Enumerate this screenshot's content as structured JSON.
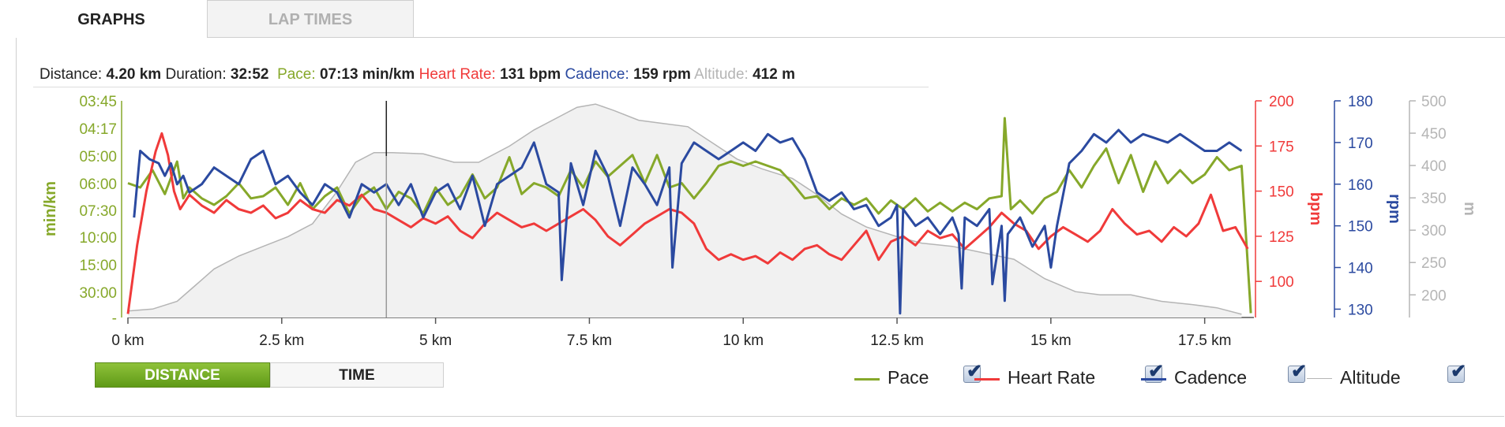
{
  "tabs": {
    "graphs": "GRAPHS",
    "lap_times": "LAP TIMES"
  },
  "stats": {
    "distance_label": "Distance:",
    "distance_value": "4.20 km",
    "duration_label": "Duration:",
    "duration_value": "32:52",
    "pace_label": "Pace:",
    "pace_value": "07:13 min/km",
    "hr_label": "Heart Rate:",
    "hr_value": "131 bpm",
    "cadence_label": "Cadence:",
    "cadence_value": "159 rpm",
    "altitude_label": "Altitude:",
    "altitude_value": "412 m"
  },
  "toggle": {
    "distance": "DISTANCE",
    "time": "TIME"
  },
  "legend": [
    {
      "key": "pace",
      "label": "Pace",
      "color": "#86a82a"
    },
    {
      "key": "hr",
      "label": "Heart Rate",
      "color": "#f03a3a"
    },
    {
      "key": "cadence",
      "label": "Cadence",
      "color": "#2b4aa0"
    },
    {
      "key": "altitude",
      "label": "Altitude",
      "color": "#b5b5b5"
    }
  ],
  "check_glyph": "✔",
  "chart_data": {
    "type": "line",
    "x_unit": "km",
    "xlim": [
      0,
      18.3
    ],
    "x_ticks": [
      "0 km",
      "2.5 km",
      "5 km",
      "7.5 km",
      "10 km",
      "12.5 km",
      "15 km",
      "17.5 km"
    ],
    "x_tick_values": [
      0,
      2.5,
      5,
      7.5,
      10,
      12.5,
      15,
      17.5
    ],
    "cursor_x": 4.2,
    "axes": {
      "pace": {
        "label": "min/km",
        "color": "#86a82a",
        "ticks": [
          "03:45",
          "04:17",
          "05:00",
          "06:00",
          "07:30",
          "10:00",
          "15:00",
          "30:00",
          "-"
        ]
      },
      "hr": {
        "label": "bpm",
        "color": "#f03a3a",
        "ylim": [
          80,
          200
        ],
        "ticks": [
          100,
          125,
          150,
          175,
          200
        ]
      },
      "cadence": {
        "label": "rpm",
        "color": "#2b4aa0",
        "ylim": [
          128,
          180
        ],
        "ticks": [
          130,
          140,
          150,
          160,
          170,
          180
        ]
      },
      "altitude": {
        "label": "m",
        "color": "#b5b5b5",
        "ylim": [
          165,
          500
        ],
        "ticks": [
          200,
          250,
          300,
          350,
          400,
          450,
          500
        ]
      }
    },
    "series": [
      {
        "name": "Altitude",
        "axis": "altitude",
        "fill": true,
        "x": [
          0,
          0.4,
          0.8,
          1.1,
          1.4,
          1.8,
          2.2,
          2.6,
          3.0,
          3.4,
          3.7,
          4.0,
          4.3,
          4.8,
          5.3,
          5.7,
          6.2,
          6.6,
          7.0,
          7.3,
          7.6,
          7.9,
          8.3,
          8.7,
          9.1,
          9.5,
          9.9,
          10.3,
          10.8,
          11.2,
          11.6,
          12.0,
          12.5,
          12.9,
          13.4,
          13.9,
          14.4,
          14.9,
          15.4,
          15.8,
          16.3,
          16.8,
          17.3,
          17.7,
          18.1
        ],
        "y": [
          175,
          178,
          190,
          215,
          240,
          260,
          275,
          290,
          310,
          360,
          405,
          420,
          420,
          418,
          405,
          405,
          430,
          455,
          475,
          490,
          495,
          485,
          470,
          465,
          460,
          435,
          410,
          395,
          380,
          355,
          325,
          305,
          290,
          280,
          275,
          265,
          255,
          225,
          205,
          200,
          200,
          190,
          185,
          180,
          170
        ]
      },
      {
        "name": "Pace",
        "axis": "pace",
        "x": [
          0,
          0.2,
          0.4,
          0.6,
          0.8,
          0.9,
          1.0,
          1.2,
          1.4,
          1.6,
          1.8,
          2.0,
          2.2,
          2.4,
          2.6,
          2.8,
          3.0,
          3.2,
          3.4,
          3.6,
          3.8,
          4.0,
          4.2,
          4.4,
          4.6,
          4.8,
          5.0,
          5.2,
          5.4,
          5.6,
          5.8,
          6.0,
          6.2,
          6.4,
          6.6,
          6.8,
          7.0,
          7.2,
          7.4,
          7.6,
          7.8,
          8.0,
          8.2,
          8.4,
          8.6,
          8.8,
          9.0,
          9.2,
          9.4,
          9.6,
          9.8,
          10.0,
          10.2,
          10.4,
          10.6,
          10.8,
          11.0,
          11.2,
          11.4,
          11.6,
          11.8,
          12.0,
          12.2,
          12.4,
          12.6,
          12.8,
          13.0,
          13.2,
          13.4,
          13.6,
          13.8,
          14.0,
          14.2,
          14.25,
          14.35,
          14.5,
          14.7,
          14.9,
          15.1,
          15.3,
          15.5,
          15.7,
          15.9,
          16.1,
          16.3,
          16.5,
          16.7,
          16.9,
          17.1,
          17.3,
          17.5,
          17.7,
          17.9,
          18.1,
          18.25
        ],
        "y": [
          0.62,
          0.6,
          0.68,
          0.57,
          0.72,
          0.55,
          0.6,
          0.55,
          0.52,
          0.56,
          0.62,
          0.55,
          0.56,
          0.6,
          0.52,
          0.62,
          0.5,
          0.56,
          0.6,
          0.48,
          0.56,
          0.6,
          0.5,
          0.58,
          0.55,
          0.48,
          0.6,
          0.52,
          0.56,
          0.66,
          0.55,
          0.6,
          0.74,
          0.57,
          0.62,
          0.6,
          0.56,
          0.68,
          0.6,
          0.72,
          0.65,
          0.7,
          0.75,
          0.62,
          0.75,
          0.6,
          0.62,
          0.55,
          0.62,
          0.7,
          0.72,
          0.7,
          0.72,
          0.7,
          0.68,
          0.62,
          0.55,
          0.56,
          0.5,
          0.55,
          0.52,
          0.55,
          0.48,
          0.54,
          0.5,
          0.55,
          0.49,
          0.53,
          0.49,
          0.53,
          0.5,
          0.55,
          0.56,
          0.92,
          0.5,
          0.54,
          0.48,
          0.55,
          0.58,
          0.68,
          0.6,
          0.7,
          0.78,
          0.62,
          0.75,
          0.58,
          0.72,
          0.62,
          0.68,
          0.62,
          0.66,
          0.74,
          0.68,
          0.7,
          0.02
        ]
      },
      {
        "name": "Heart Rate",
        "axis": "hr",
        "x": [
          0,
          0.15,
          0.3,
          0.45,
          0.55,
          0.65,
          0.75,
          0.85,
          1.0,
          1.2,
          1.4,
          1.6,
          1.8,
          2.0,
          2.2,
          2.4,
          2.6,
          2.8,
          3.0,
          3.2,
          3.4,
          3.6,
          3.8,
          4.0,
          4.2,
          4.4,
          4.6,
          4.8,
          5.0,
          5.2,
          5.4,
          5.6,
          5.8,
          6.0,
          6.2,
          6.4,
          6.6,
          6.8,
          7.0,
          7.2,
          7.4,
          7.6,
          7.8,
          8.0,
          8.2,
          8.4,
          8.6,
          8.8,
          9.0,
          9.2,
          9.4,
          9.6,
          9.8,
          10.0,
          10.2,
          10.4,
          10.6,
          10.8,
          11.0,
          11.2,
          11.4,
          11.6,
          11.8,
          12.0,
          12.2,
          12.4,
          12.6,
          12.8,
          13.0,
          13.2,
          13.4,
          13.6,
          13.8,
          14.0,
          14.2,
          14.4,
          14.6,
          14.8,
          15.0,
          15.2,
          15.4,
          15.6,
          15.8,
          16.0,
          16.2,
          16.4,
          16.6,
          16.8,
          17.0,
          17.2,
          17.4,
          17.6,
          17.8,
          18.0,
          18.2
        ],
        "y": [
          82,
          120,
          150,
          172,
          182,
          170,
          150,
          140,
          148,
          142,
          138,
          145,
          140,
          138,
          142,
          135,
          138,
          145,
          140,
          138,
          145,
          142,
          148,
          140,
          138,
          134,
          130,
          135,
          132,
          136,
          128,
          124,
          132,
          138,
          134,
          130,
          132,
          128,
          132,
          136,
          140,
          134,
          125,
          120,
          126,
          132,
          136,
          140,
          138,
          132,
          118,
          112,
          115,
          112,
          114,
          110,
          116,
          112,
          118,
          120,
          115,
          112,
          120,
          128,
          112,
          122,
          125,
          120,
          128,
          124,
          126,
          118,
          124,
          130,
          138,
          132,
          128,
          118,
          125,
          130,
          126,
          122,
          128,
          140,
          132,
          126,
          128,
          122,
          130,
          125,
          132,
          148,
          128,
          130,
          118
        ]
      },
      {
        "name": "Cadence",
        "axis": "cadence",
        "x": [
          0.1,
          0.2,
          0.35,
          0.5,
          0.6,
          0.7,
          0.8,
          0.9,
          1.0,
          1.2,
          1.4,
          1.6,
          1.8,
          2.0,
          2.2,
          2.4,
          2.6,
          2.8,
          3.0,
          3.2,
          3.4,
          3.6,
          3.8,
          4.0,
          4.2,
          4.4,
          4.6,
          4.8,
          5.0,
          5.2,
          5.4,
          5.6,
          5.8,
          6.0,
          6.2,
          6.4,
          6.6,
          6.8,
          7.0,
          7.05,
          7.2,
          7.4,
          7.6,
          7.8,
          8.0,
          8.2,
          8.4,
          8.6,
          8.8,
          8.85,
          9.0,
          9.2,
          9.4,
          9.6,
          9.8,
          10.0,
          10.2,
          10.4,
          10.6,
          10.8,
          11.0,
          11.2,
          11.4,
          11.6,
          11.8,
          12.0,
          12.2,
          12.4,
          12.5,
          12.55,
          12.6,
          12.8,
          13.0,
          13.2,
          13.4,
          13.5,
          13.55,
          13.6,
          13.8,
          14.0,
          14.05,
          14.2,
          14.25,
          14.3,
          14.5,
          14.7,
          14.9,
          15.0,
          15.1,
          15.3,
          15.5,
          15.7,
          15.9,
          16.1,
          16.3,
          16.5,
          16.7,
          16.9,
          17.1,
          17.3,
          17.5,
          17.7,
          17.9,
          18.1
        ],
        "y": [
          152,
          168,
          166,
          165,
          162,
          165,
          160,
          162,
          158,
          160,
          164,
          162,
          160,
          166,
          168,
          160,
          162,
          158,
          155,
          160,
          158,
          152,
          160,
          158,
          160,
          155,
          160,
          152,
          158,
          160,
          154,
          162,
          150,
          160,
          162,
          164,
          170,
          160,
          158,
          137,
          165,
          155,
          168,
          162,
          150,
          164,
          160,
          155,
          164,
          140,
          165,
          170,
          168,
          166,
          168,
          170,
          168,
          172,
          170,
          171,
          166,
          158,
          156,
          158,
          154,
          155,
          150,
          152,
          155,
          129,
          154,
          150,
          152,
          148,
          152,
          148,
          135,
          152,
          150,
          154,
          136,
          150,
          132,
          148,
          152,
          145,
          150,
          140,
          150,
          165,
          168,
          172,
          170,
          173,
          170,
          172,
          171,
          170,
          172,
          170,
          168,
          168,
          170,
          168
        ]
      }
    ]
  }
}
